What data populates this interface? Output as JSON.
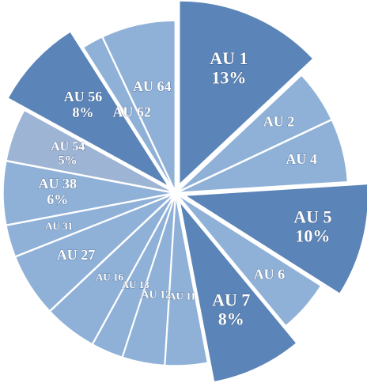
{
  "chart_data": {
    "type": "pie",
    "title": "",
    "slices": [
      {
        "label": "AU 1",
        "value": 13,
        "pct": "13%",
        "exploded": true,
        "color": "#5b84b8"
      },
      {
        "label": "AU 2",
        "value": 5,
        "pct": "",
        "exploded": false,
        "color": "#8fb1d8"
      },
      {
        "label": "AU 4",
        "value": 6,
        "pct": "",
        "exploded": false,
        "color": "#8fb1d8"
      },
      {
        "label": "AU 5",
        "value": 10,
        "pct": "10%",
        "exploded": true,
        "color": "#5b84b8"
      },
      {
        "label": "AU 6",
        "value": 5,
        "pct": "",
        "exploded": false,
        "color": "#8fb1d8"
      },
      {
        "label": "AU 7",
        "value": 8,
        "pct": "8%",
        "exploded": true,
        "color": "#5b84b8"
      },
      {
        "label": "AU 11",
        "value": 4,
        "pct": "",
        "exploded": false,
        "color": "#8fb1d8"
      },
      {
        "label": "AU 12",
        "value": 4,
        "pct": "",
        "exploded": false,
        "color": "#8fb1d8"
      },
      {
        "label": "AU 13",
        "value": 3,
        "pct": "",
        "exploded": false,
        "color": "#8fb1d8"
      },
      {
        "label": "AU 16",
        "value": 5,
        "pct": "",
        "exploded": false,
        "color": "#8fb1d8"
      },
      {
        "label": "AU 27",
        "value": 6,
        "pct": "",
        "exploded": false,
        "color": "#8fb1d8"
      },
      {
        "label": "AU 31",
        "value": 3,
        "pct": "",
        "exploded": false,
        "color": "#8fb1d8"
      },
      {
        "label": "AU 38",
        "value": 6,
        "pct": "6%",
        "exploded": false,
        "color": "#8fb1d8"
      },
      {
        "label": "AU 54",
        "value": 5,
        "pct": "5%",
        "exploded": false,
        "color": "#9db4d4"
      },
      {
        "label": "AU 56",
        "value": 8,
        "pct": "8%",
        "exploded": true,
        "color": "#5b84b8"
      },
      {
        "label": "AU 62",
        "value": 2,
        "pct": "",
        "exploded": false,
        "color": "#8fb1d8"
      },
      {
        "label": "AU 64",
        "value": 7,
        "pct": "",
        "exploded": false,
        "color": "#8fb1d8"
      }
    ]
  }
}
